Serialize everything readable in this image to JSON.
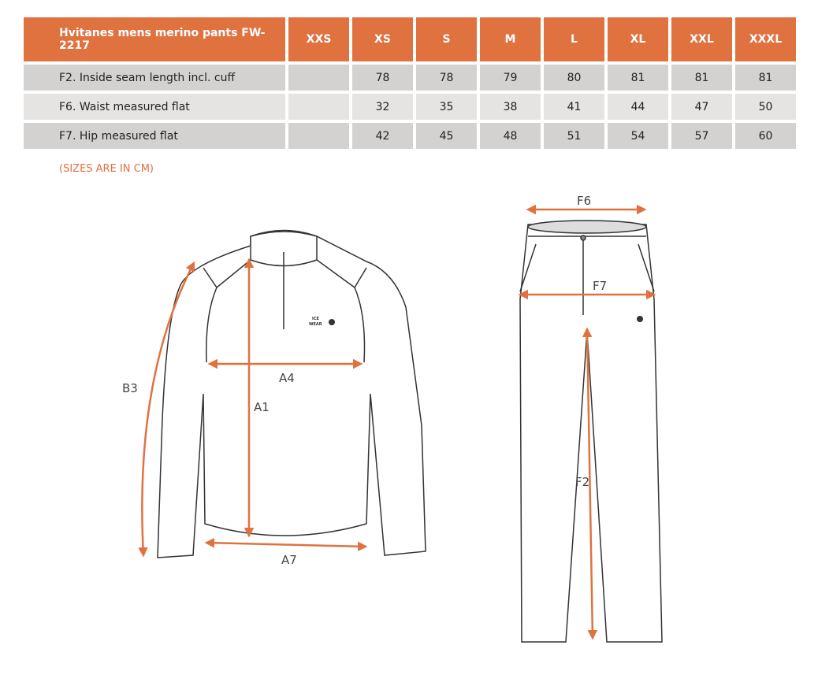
{
  "table": {
    "title": "Hvitanes mens merino pants FW-2217",
    "sizes": [
      "XXS",
      "XS",
      "S",
      "M",
      "L",
      "XL",
      "XXL",
      "XXXL"
    ],
    "rows": [
      {
        "label": "F2. Inside seam length incl. cuff",
        "values": [
          "",
          "78",
          "78",
          "79",
          "80",
          "81",
          "81",
          "81"
        ]
      },
      {
        "label": "F6. Waist measured flat",
        "values": [
          "",
          "32",
          "35",
          "38",
          "41",
          "44",
          "47",
          "50"
        ]
      },
      {
        "label": "F7. Hip measured flat",
        "values": [
          "",
          "42",
          "45",
          "48",
          "51",
          "54",
          "57",
          "60"
        ]
      }
    ]
  },
  "note": "(SIZES ARE IN CM)",
  "diagram": {
    "accent": "#e07240",
    "shirt_labels": {
      "b3": "B3",
      "a1": "A1",
      "a4": "A4",
      "a7": "A7"
    },
    "pants_labels": {
      "f6": "F6",
      "f7": "F7",
      "f2": "F2"
    },
    "logo": "ICE WEAR"
  }
}
